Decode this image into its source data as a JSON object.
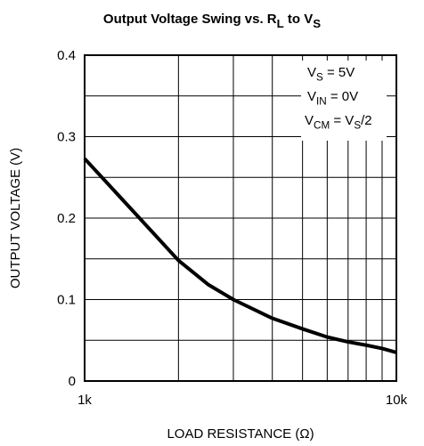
{
  "chart_data": {
    "type": "line",
    "title": [
      "Output Voltage Swing vs. R",
      "L",
      " to V",
      "S"
    ],
    "annotations": [
      [
        "V",
        "S",
        " = 5V"
      ],
      [
        "V",
        "IN",
        " = 0V"
      ],
      [
        "V",
        "CM",
        " = V",
        "S",
        "/2"
      ]
    ],
    "xlabel": "LOAD RESISTANCE (Ω)",
    "ylabel": "OUTPUT VOLTAGE (V)",
    "xscale": "log",
    "x": [
      1000,
      1500,
      2000,
      2500,
      3000,
      4000,
      5000,
      6000,
      7000,
      8000,
      9000,
      10000
    ],
    "series": [
      {
        "color": "#000000",
        "values": [
          0.273,
          0.2,
          0.148,
          0.118,
          0.1,
          0.077,
          0.064,
          0.054,
          0.048,
          0.044,
          0.04,
          0.035
        ]
      }
    ],
    "xlim": [
      1000,
      10000
    ],
    "xticks": [
      {
        "value": 1000,
        "label": "1k"
      },
      {
        "value": 10000,
        "label": "10k"
      }
    ],
    "xminor": [
      2000,
      3000,
      4000,
      5000,
      6000,
      7000,
      8000,
      9000
    ],
    "ylim": [
      0,
      0.4
    ],
    "yticks": [
      0,
      0.1,
      0.2,
      0.3,
      0.4
    ],
    "yminor": [
      0.05,
      0.15,
      0.25,
      0.35
    ],
    "grid": true
  }
}
